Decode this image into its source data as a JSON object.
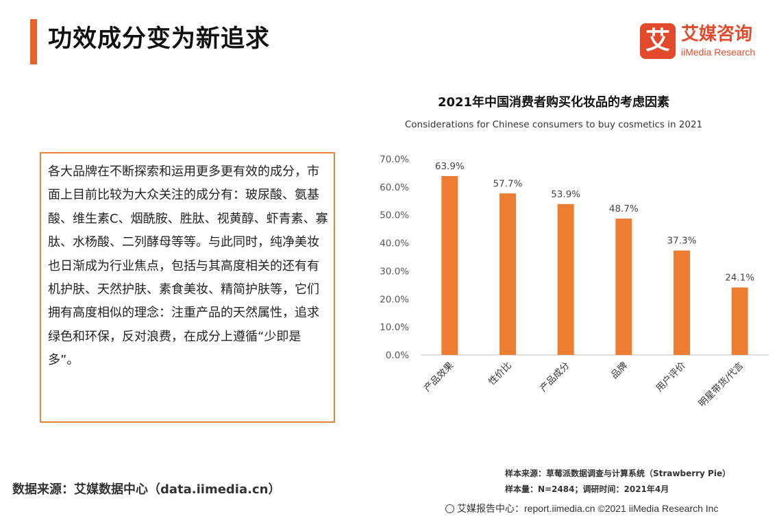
{
  "header": {
    "title": "功效成分变为新追求",
    "logo_cn": "艾媒咨询",
    "logo_en": "iiMedia Research",
    "logo_mark": "艾",
    "accent_color": "#e8602c"
  },
  "text_box": {
    "paragraph": "各大品牌在不断探索和运用更多更有效的成分，市面上目前比较为大众关注的成分有：玻尿酸、氨基酸、维生素C、烟酰胺、胜肽、视黄醇、虾青素、寡肽、水杨酸、二列酵母等等。与此同时，纯净美妆也日渐成为行业焦点，包括与其高度相关的还有有机护肤、天然护肤、素食美妆、精简护肤等，它们拥有高度相似的理念：注重产品的天然属性，追求绿色和环保，反对浪费，在成分上遵循“少即是多”。",
    "border_color": "#e8843a"
  },
  "chart_data": {
    "type": "bar",
    "title": "2021年中国消费者购买化妆品的考虑因素",
    "subtitle": "Considerations for Chinese consumers to buy cosmetics in 2021",
    "categories": [
      "产品效果",
      "性价比",
      "产品成分",
      "品牌",
      "用户评价",
      "明星带货/代言"
    ],
    "values": [
      63.9,
      57.7,
      53.9,
      48.7,
      37.3,
      24.1
    ],
    "value_labels": [
      "63.9%",
      "57.7%",
      "53.9%",
      "48.7%",
      "37.3%",
      "24.1%"
    ],
    "ylim": [
      0,
      70
    ],
    "yticks": [
      "0.0%",
      "10.0%",
      "20.0%",
      "30.0%",
      "40.0%",
      "50.0%",
      "60.0%",
      "70.0%"
    ],
    "xlabel": "",
    "ylabel": "",
    "grid": false,
    "bar_color": "#ed7d31"
  },
  "footer": {
    "source_left": "数据来源：艾媒数据中心（data.iimedia.cn）",
    "sample_source": "样本来源：草莓派数据调查与计算系统（Strawberry Pie）",
    "sample_size": "样本量：N=2484；调研时间：2021年4月",
    "copyright": "艾媒报告中心：report.iimedia.cn ©2021 iiMedia Research Inc",
    "globe_icon": "globe-icon"
  }
}
